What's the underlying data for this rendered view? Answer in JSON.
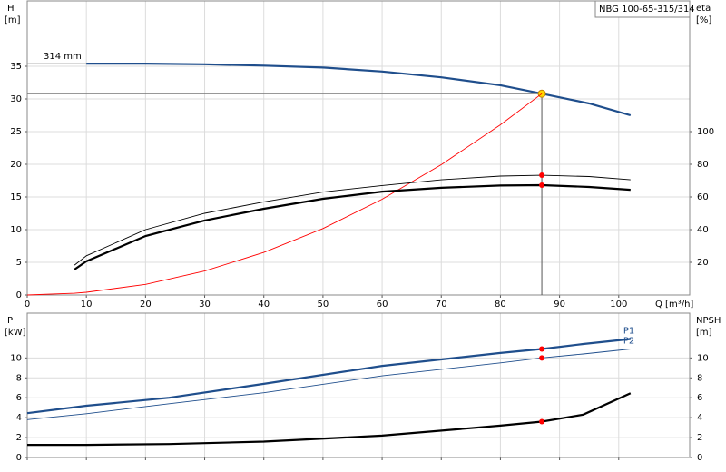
{
  "chart_data": [
    {
      "type": "line",
      "title": "NBG 100-65-315/314",
      "annotation": "314 mm",
      "x_label": "Q [m³/h]",
      "y_label": "H",
      "y_unit": "[m]",
      "y2_label": "eta",
      "y2_unit": "[%]",
      "x": [
        0,
        8,
        10,
        20,
        30,
        40,
        50,
        60,
        70,
        80,
        87,
        95,
        102
      ],
      "series": [
        {
          "color": "#1f4e8c",
          "weight": "bold",
          "values": [
            null,
            null,
            35.4,
            35.4,
            35.3,
            35.1,
            34.8,
            34.2,
            33.3,
            32.1,
            30.8,
            29.3,
            27.5
          ]
        },
        {
          "color": "#ff0000",
          "weight": "thin",
          "values": [
            0,
            0.26,
            0.41,
            1.63,
            3.66,
            6.51,
            10.17,
            14.65,
            19.94,
            26.04,
            30.8,
            null,
            null
          ]
        },
        {
          "color": "#000000",
          "weight": "bold",
          "axis": "y2",
          "values": [
            null,
            15.6,
            20.6,
            36.1,
            45.6,
            52.8,
            58.9,
            63.3,
            65.6,
            67,
            67.2,
            66.1,
            64.4
          ]
        },
        {
          "color": "#000000",
          "weight": "thin",
          "axis": "y2",
          "values": [
            null,
            18.3,
            24,
            40,
            50,
            57,
            63,
            67,
            70.5,
            72.8,
            73.3,
            72.5,
            70.5
          ]
        }
      ],
      "marker_x": 87,
      "xlim": [
        0,
        112
      ],
      "ylim": [
        0,
        45
      ],
      "y2lim": [
        0,
        180
      ],
      "xticks": [
        0,
        10,
        20,
        30,
        40,
        50,
        60,
        70,
        80,
        90,
        100
      ],
      "yticks": [
        0,
        5,
        10,
        15,
        20,
        25,
        30,
        35
      ],
      "y2ticks": [
        20,
        40,
        60,
        80,
        100
      ],
      "grid": true
    },
    {
      "type": "line",
      "y_label": "P",
      "y_unit": "[kW]",
      "y2_label": "NPSH",
      "y2_unit": "[m]",
      "x": [
        0,
        10,
        24,
        40,
        60,
        80,
        87,
        94,
        102
      ],
      "series": [
        {
          "name": "P1",
          "color": "#1f4e8c",
          "weight": "bold",
          "values": [
            4.45,
            5.2,
            6.0,
            7.4,
            9.2,
            10.5,
            10.9,
            11.4,
            11.9
          ]
        },
        {
          "name": "P2",
          "color": "#1f4e8c",
          "weight": "thin",
          "values": [
            3.8,
            4.4,
            5.4,
            6.5,
            8.2,
            9.5,
            10.0,
            10.4,
            10.9
          ]
        },
        {
          "color": "#000000",
          "weight": "bold",
          "axis": "y2",
          "values": [
            1.27,
            1.27,
            1.35,
            1.6,
            2.2,
            3.2,
            3.6,
            4.3,
            6.45
          ]
        }
      ],
      "marker_x": 87,
      "xlim": [
        0,
        112
      ],
      "ylim": [
        0,
        14.5
      ],
      "y2lim": [
        0,
        14.5
      ],
      "xticks": [
        0,
        10,
        20,
        30,
        40,
        50,
        60,
        70,
        80,
        90,
        100
      ],
      "yticks": [
        0,
        2,
        4,
        6,
        8,
        10
      ],
      "y2ticks": [
        0,
        2,
        4,
        6,
        8,
        10
      ],
      "grid": true
    }
  ]
}
